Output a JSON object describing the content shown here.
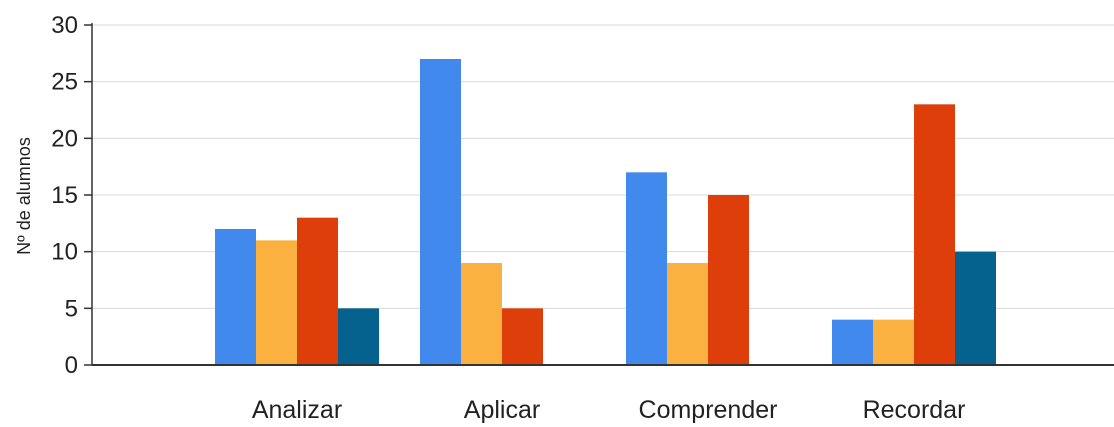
{
  "chart_data": {
    "type": "bar",
    "title": "",
    "xlabel": "",
    "ylabel": "Nº de alumnos",
    "ylim": [
      0,
      30
    ],
    "yticks": [
      0,
      5,
      10,
      15,
      20,
      25,
      30
    ],
    "grid": true,
    "categories": [
      "Analizar",
      "Aplicar",
      "Comprender",
      "Recordar"
    ],
    "series": [
      {
        "color": "#4189EC",
        "values": [
          12,
          27,
          17,
          4
        ]
      },
      {
        "color": "#FAB13F",
        "values": [
          11,
          9,
          9,
          4
        ]
      },
      {
        "color": "#DE3E0A",
        "values": [
          13,
          5,
          15,
          23
        ]
      },
      {
        "color": "#05628F",
        "values": [
          5,
          0,
          0,
          10
        ]
      }
    ]
  }
}
